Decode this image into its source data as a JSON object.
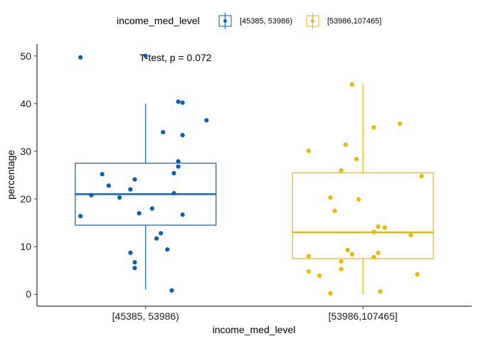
{
  "chart_data": {
    "type": "boxplot",
    "xlabel": "income_med_level",
    "ylabel": "percentage",
    "ylim": [
      -2.5,
      52.5
    ],
    "yticks": [
      0,
      10,
      20,
      30,
      40,
      50
    ],
    "categories": [
      "[45385, 53986)",
      "[53986,107465]"
    ],
    "legend": {
      "title": "income_med_level",
      "position": "top",
      "entries": [
        "[45385, 53986)",
        "[53986,107465]"
      ]
    },
    "annotation": "T-test, p = 0.072",
    "series": [
      {
        "name": "[45385, 53986)",
        "color": "#0c5fb0",
        "box": {
          "whisker_low": 1.0,
          "q1": 14.5,
          "median": 21.0,
          "q3": 27.5,
          "whisker_high": 40.0
        },
        "points": [
          [
            -0.3,
            49.7
          ],
          [
            0.0,
            50.0
          ],
          [
            0.15,
            40.4
          ],
          [
            0.17,
            40.2
          ],
          [
            0.28,
            36.5
          ],
          [
            0.08,
            34.0
          ],
          [
            0.17,
            33.4
          ],
          [
            0.15,
            27.9
          ],
          [
            0.15,
            26.8
          ],
          [
            0.13,
            25.4
          ],
          [
            -0.2,
            25.2
          ],
          [
            -0.05,
            24.1
          ],
          [
            -0.17,
            22.8
          ],
          [
            -0.07,
            22.0
          ],
          [
            -0.25,
            20.8
          ],
          [
            0.13,
            21.2
          ],
          [
            -0.12,
            20.3
          ],
          [
            0.03,
            18.0
          ],
          [
            -0.03,
            17.0
          ],
          [
            0.17,
            16.7
          ],
          [
            -0.3,
            16.4
          ],
          [
            0.07,
            12.8
          ],
          [
            0.05,
            11.7
          ],
          [
            0.1,
            9.4
          ],
          [
            -0.07,
            8.7
          ],
          [
            -0.05,
            6.7
          ],
          [
            -0.05,
            5.5
          ],
          [
            0.12,
            0.8
          ]
        ]
      },
      {
        "name": "[53986,107465]",
        "color": "#e8b700",
        "box": {
          "whisker_low": 0.0,
          "q1": 7.5,
          "median": 13.0,
          "q3": 25.5,
          "whisker_high": 44.0
        },
        "points": [
          [
            -0.05,
            44.0
          ],
          [
            0.17,
            35.8
          ],
          [
            0.05,
            35.0
          ],
          [
            -0.08,
            31.4
          ],
          [
            -0.25,
            30.1
          ],
          [
            -0.03,
            28.4
          ],
          [
            -0.1,
            26.0
          ],
          [
            0.27,
            24.8
          ],
          [
            -0.15,
            20.3
          ],
          [
            -0.02,
            19.9
          ],
          [
            -0.13,
            17.5
          ],
          [
            0.07,
            14.2
          ],
          [
            0.1,
            14.0
          ],
          [
            0.05,
            13.1
          ],
          [
            0.22,
            12.4
          ],
          [
            -0.07,
            9.3
          ],
          [
            -0.05,
            8.4
          ],
          [
            0.07,
            8.7
          ],
          [
            -0.25,
            8.0
          ],
          [
            0.05,
            7.8
          ],
          [
            -0.1,
            6.9
          ],
          [
            -0.1,
            5.3
          ],
          [
            -0.25,
            4.8
          ],
          [
            -0.2,
            3.9
          ],
          [
            0.25,
            4.2
          ],
          [
            -0.15,
            0.2
          ],
          [
            0.08,
            0.6
          ]
        ]
      }
    ]
  }
}
